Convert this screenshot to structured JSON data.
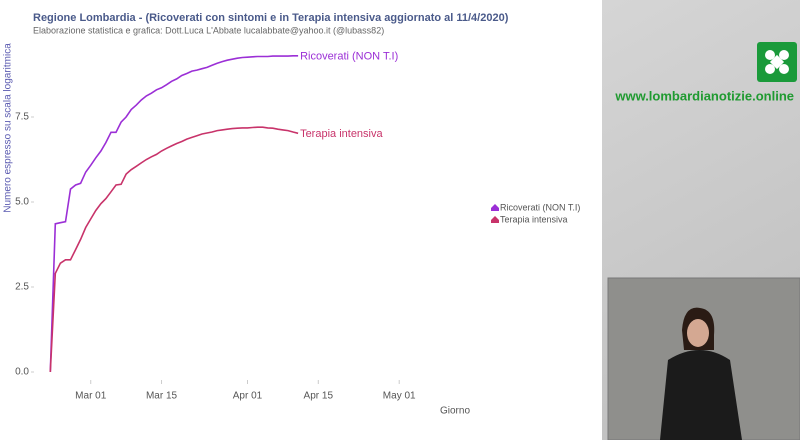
{
  "chart_data": {
    "type": "line",
    "title": "Regione Lombardia  - (Ricoverati con sintomi e in Terapia intensiva  aggiornato al 11/4/2020)",
    "subtitle": "Elaborazione statistica e grafica: Dott.Luca L'Abbate  lucalabbate@yahoo.it  (@lubass82)",
    "y_label": "Numero espresso su scala logaritmica",
    "x_label": "Giorno",
    "watermark": "www.lombardianotizie.online",
    "x": [
      "Feb 22",
      "Feb 23",
      "Feb 24",
      "Feb 25",
      "Feb 26",
      "Feb 27",
      "Feb 28",
      "Feb 29",
      "Mar 01",
      "Mar 02",
      "Mar 03",
      "Mar 04",
      "Mar 05",
      "Mar 06",
      "Mar 07",
      "Mar 08",
      "Mar 09",
      "Mar 10",
      "Mar 11",
      "Mar 12",
      "Mar 13",
      "Mar 14",
      "Mar 15",
      "Mar 16",
      "Mar 17",
      "Mar 18",
      "Mar 19",
      "Mar 20",
      "Mar 21",
      "Mar 22",
      "Mar 23",
      "Mar 24",
      "Mar 25",
      "Mar 26",
      "Mar 27",
      "Mar 28",
      "Mar 29",
      "Mar 30",
      "Mar 31",
      "Apr 01",
      "Apr 02",
      "Apr 03",
      "Apr 04",
      "Apr 05",
      "Apr 06",
      "Apr 07",
      "Apr 08",
      "Apr 09",
      "Apr 10",
      "Apr 11"
    ],
    "series": [
      {
        "name": "Ricoverati (NON T.I)",
        "color": "#9b2fd6",
        "values": [
          0,
          4.36,
          4.39,
          4.42,
          5.38,
          5.5,
          5.55,
          5.88,
          6.08,
          6.3,
          6.5,
          6.75,
          7.05,
          7.05,
          7.35,
          7.5,
          7.72,
          7.85,
          8.0,
          8.12,
          8.2,
          8.3,
          8.36,
          8.45,
          8.55,
          8.62,
          8.72,
          8.78,
          8.85,
          8.88,
          8.92,
          8.96,
          9.02,
          9.08,
          9.13,
          9.17,
          9.2,
          9.23,
          9.25,
          9.26,
          9.27,
          9.28,
          9.28,
          9.28,
          9.29,
          9.29,
          9.29,
          9.29,
          9.3,
          9.3
        ]
      },
      {
        "name": "Terapia intensiva",
        "color": "#c8336a",
        "values": [
          0,
          2.9,
          3.2,
          3.3,
          3.3,
          3.6,
          3.9,
          4.25,
          4.5,
          4.75,
          4.95,
          5.1,
          5.3,
          5.5,
          5.52,
          5.82,
          5.95,
          6.05,
          6.15,
          6.25,
          6.33,
          6.4,
          6.5,
          6.58,
          6.65,
          6.72,
          6.78,
          6.85,
          6.9,
          6.95,
          7.0,
          7.03,
          7.06,
          7.1,
          7.12,
          7.14,
          7.16,
          7.17,
          7.18,
          7.18,
          7.19,
          7.2,
          7.2,
          7.18,
          7.17,
          7.14,
          7.12,
          7.1,
          7.06,
          7.02
        ]
      }
    ],
    "xlim": [
      "Feb 17",
      "May 15"
    ],
    "xticks": [
      "Mar 01",
      "Mar 15",
      "Apr 01",
      "Apr 15",
      "May 01"
    ],
    "ylim": [
      0,
      10
    ],
    "yticks": [
      {
        "value": 0,
        "label": "0.0"
      },
      2.5,
      {
        "value": 5,
        "label": "5.0"
      },
      7.5
    ],
    "grid": false,
    "legend": "right"
  }
}
